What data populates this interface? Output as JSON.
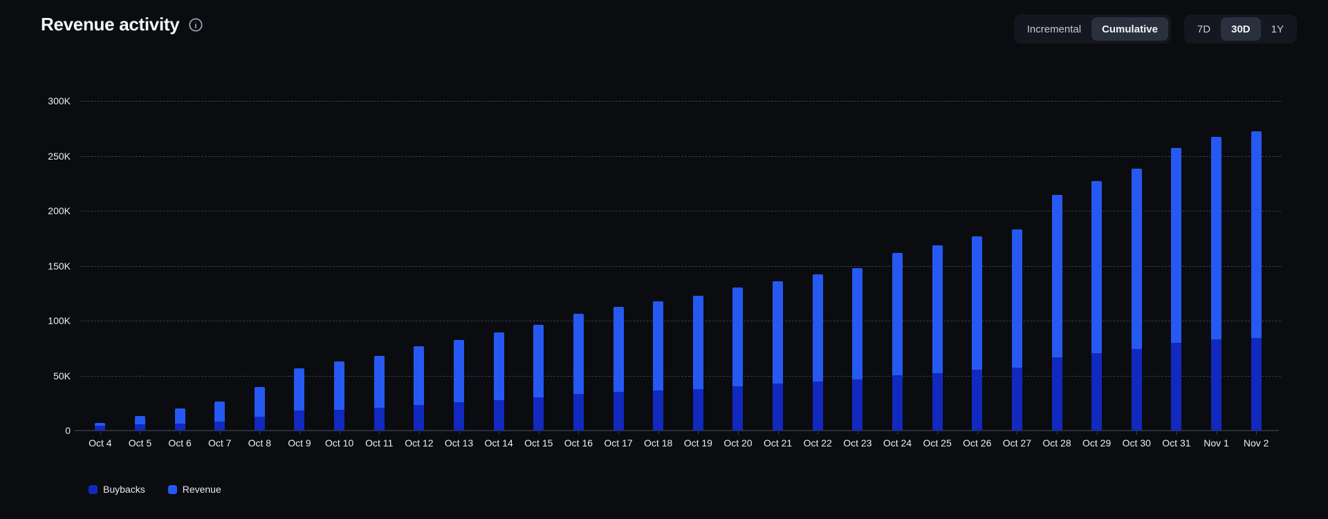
{
  "header": {
    "title": "Revenue activity"
  },
  "controls": {
    "mode_toggle": {
      "options": [
        "Incremental",
        "Cumulative"
      ],
      "selected": "Cumulative"
    },
    "range_toggle": {
      "options": [
        "7D",
        "30D",
        "1Y"
      ],
      "selected": "30D"
    }
  },
  "colors": {
    "background": "#0a0c10",
    "buybacks": "#1129be",
    "revenue": "#2659f2",
    "gridline": "#39404e",
    "axis_text": "#edeff2"
  },
  "chart_data": {
    "type": "bar",
    "stacked": true,
    "title": "Revenue activity",
    "xlabel": "",
    "ylabel": "",
    "ylim": [
      0,
      300000
    ],
    "grid": "horizontal-dashed",
    "legend_position": "bottom-left",
    "y_ticks": [
      {
        "value": 0,
        "label": "0"
      },
      {
        "value": 50000,
        "label": "50K"
      },
      {
        "value": 100000,
        "label": "100K"
      },
      {
        "value": 150000,
        "label": "150K"
      },
      {
        "value": 200000,
        "label": "200K"
      },
      {
        "value": 250000,
        "label": "250K"
      },
      {
        "value": 300000,
        "label": "300K"
      }
    ],
    "categories": [
      "Oct 4",
      "Oct 5",
      "Oct 6",
      "Oct 7",
      "Oct 8",
      "Oct 9",
      "Oct 10",
      "Oct 11",
      "Oct 12",
      "Oct 13",
      "Oct 14",
      "Oct 15",
      "Oct 16",
      "Oct 17",
      "Oct 18",
      "Oct 19",
      "Oct 20",
      "Oct 21",
      "Oct 22",
      "Oct 23",
      "Oct 24",
      "Oct 25",
      "Oct 26",
      "Oct 27",
      "Oct 28",
      "Oct 29",
      "Oct 30",
      "Oct 31",
      "Nov 1",
      "Nov 2"
    ],
    "series": [
      {
        "name": "Buybacks",
        "color": "#1129be",
        "values": [
          4500,
          5500,
          6500,
          8000,
          12500,
          18000,
          19000,
          21000,
          23500,
          25500,
          27500,
          30000,
          33500,
          35000,
          36500,
          38000,
          40500,
          42500,
          44500,
          46500,
          50500,
          52500,
          55500,
          57000,
          66500,
          70500,
          74000,
          80000,
          83000,
          84500
        ]
      },
      {
        "name": "Revenue",
        "color": "#2659f2",
        "values": [
          2500,
          7500,
          13500,
          18500,
          27000,
          38500,
          44000,
          47000,
          53000,
          57000,
          62000,
          66000,
          73000,
          77500,
          81000,
          84500,
          89500,
          93500,
          97500,
          101000,
          111000,
          116000,
          121000,
          126000,
          148000,
          156500,
          164500,
          177500,
          184000,
          188000
        ]
      }
    ],
    "totals": [
      7000,
      13000,
      20000,
      26500,
      39500,
      56500,
      63000,
      68000,
      76500,
      82500,
      89500,
      96000,
      106500,
      112500,
      117500,
      122500,
      130000,
      136000,
      142000,
      147500,
      161500,
      168500,
      176500,
      183000,
      214500,
      227000,
      238500,
      257500,
      267000,
      272500
    ]
  },
  "legend": {
    "items": [
      {
        "label": "Buybacks",
        "color": "#1129be"
      },
      {
        "label": "Revenue",
        "color": "#2659f2"
      }
    ]
  }
}
